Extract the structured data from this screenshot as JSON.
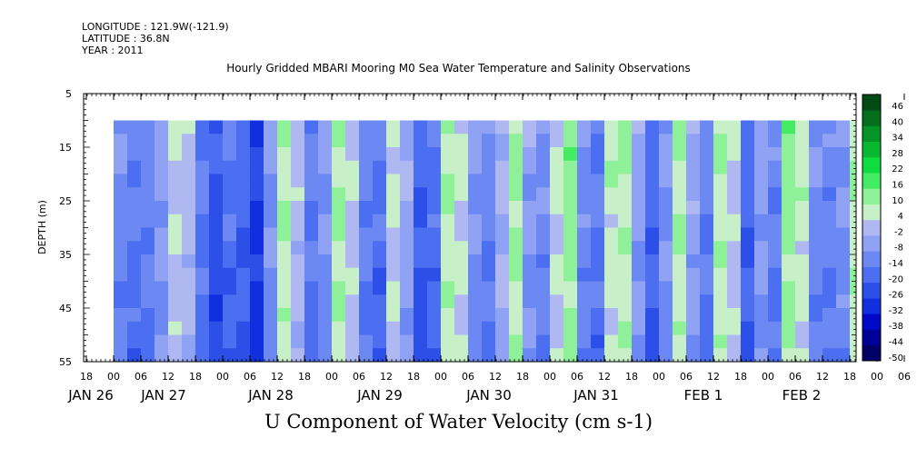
{
  "header": {
    "longitude": "LONGITUDE : 121.9W(-121.9)",
    "latitude": "LATITUDE : 36.8N",
    "year": "YEAR : 2011"
  },
  "chart_data": {
    "type": "heatmap",
    "title": "Hourly Gridded MBARI Mooring M0 Sea Water Temperature and Salinity Observations",
    "xlabel": "U Component of Water Velocity (cm s-1)",
    "ylabel": "DEPTH (m)",
    "x_hour_ticks": [
      "18",
      "00",
      "06",
      "12",
      "18",
      "00",
      "06",
      "12",
      "18",
      "00",
      "06",
      "12",
      "18",
      "00",
      "06",
      "12",
      "18",
      "00",
      "06",
      "12",
      "18",
      "00",
      "06",
      "12",
      "18",
      "00",
      "06",
      "12",
      "18",
      "00",
      "06",
      "12",
      "18"
    ],
    "x_day_labels": [
      "JAN 26",
      "JAN 27",
      "JAN 28",
      "JAN 29",
      "JAN 30",
      "JAN 31",
      "FEB  1",
      "FEB  2"
    ],
    "y_ticks": [
      5,
      15,
      25,
      35,
      45,
      55
    ],
    "ylim": [
      55,
      5
    ],
    "data_depth_range": [
      10,
      55
    ],
    "colorbar": {
      "levels": [
        -50,
        -44,
        -38,
        -32,
        -26,
        -20,
        -14,
        -8,
        -2,
        4,
        10,
        16,
        22,
        28,
        34,
        40,
        46
      ],
      "labels": [
        "46",
        "40",
        "34",
        "28",
        "22",
        "16",
        "10",
        "4",
        "-2",
        "-8",
        "-14",
        "-20",
        "-26",
        "-32",
        "-38",
        "-44",
        "-50"
      ]
    },
    "u_velocity_profile_by_hourly_column": [
      {
        "time": "JAN 27 00",
        "u": -8
      },
      {
        "time": "JAN 27 03",
        "u": -12
      },
      {
        "time": "JAN 27 06",
        "u": -10
      },
      {
        "time": "JAN 27 09",
        "u": -4
      },
      {
        "time": "JAN 27 12",
        "u": 4
      },
      {
        "time": "JAN 27 15",
        "u": 2
      },
      {
        "time": "JAN 27 18",
        "u": -12
      },
      {
        "time": "JAN 27 21",
        "u": -20
      },
      {
        "time": "JAN 28 00",
        "u": -14
      },
      {
        "time": "JAN 28 03",
        "u": -16
      },
      {
        "time": "JAN 28 06",
        "u": -24
      },
      {
        "time": "JAN 28 09",
        "u": -6
      },
      {
        "time": "JAN 28 12",
        "u": 10
      },
      {
        "time": "JAN 28 15",
        "u": 2
      },
      {
        "time": "JAN 28 18",
        "u": -12
      },
      {
        "time": "JAN 28 21",
        "u": -6
      },
      {
        "time": "JAN 29 00",
        "u": 12
      },
      {
        "time": "JAN 29 03",
        "u": 4
      },
      {
        "time": "JAN 29 06",
        "u": -10
      },
      {
        "time": "JAN 29 09",
        "u": -14
      },
      {
        "time": "JAN 29 12",
        "u": 6
      },
      {
        "time": "JAN 29 15",
        "u": -2
      },
      {
        "time": "JAN 29 18",
        "u": -18
      },
      {
        "time": "JAN 29 21",
        "u": -14
      },
      {
        "time": "JAN 30 00",
        "u": 10
      },
      {
        "time": "JAN 30 03",
        "u": 6
      },
      {
        "time": "JAN 30 06",
        "u": -6
      },
      {
        "time": "JAN 30 09",
        "u": -10
      },
      {
        "time": "JAN 30 12",
        "u": 0
      },
      {
        "time": "JAN 30 15",
        "u": 12
      },
      {
        "time": "JAN 30 18",
        "u": -4
      },
      {
        "time": "JAN 30 21",
        "u": -8
      },
      {
        "time": "JAN 31 00",
        "u": 6
      },
      {
        "time": "JAN 31 03",
        "u": 14
      },
      {
        "time": "JAN 31 06",
        "u": -8
      },
      {
        "time": "JAN 31 09",
        "u": -12
      },
      {
        "time": "JAN 31 12",
        "u": 8
      },
      {
        "time": "JAN 31 15",
        "u": 10
      },
      {
        "time": "JAN 31 18",
        "u": -4
      },
      {
        "time": "JAN 31 21",
        "u": -16
      },
      {
        "time": "FEB 1 00",
        "u": -6
      },
      {
        "time": "FEB 1 03",
        "u": 10
      },
      {
        "time": "FEB 1 06",
        "u": -2
      },
      {
        "time": "FEB 1 09",
        "u": -10
      },
      {
        "time": "FEB 1 12",
        "u": 10
      },
      {
        "time": "FEB 1 15",
        "u": 4
      },
      {
        "time": "FEB 1 18",
        "u": -16
      },
      {
        "time": "FEB 1 21",
        "u": -4
      },
      {
        "time": "FEB 2 00",
        "u": -10
      },
      {
        "time": "FEB 2 03",
        "u": 14
      },
      {
        "time": "FEB 2 06",
        "u": 8
      },
      {
        "time": "FEB 2 09",
        "u": -8
      },
      {
        "time": "FEB 2 12",
        "u": -10
      },
      {
        "time": "FEB 2 15",
        "u": -6
      },
      {
        "time": "FEB 2 18",
        "u": 10
      }
    ],
    "color_scale": [
      "#000066",
      "#000099",
      "#0008c8",
      "#1030e0",
      "#2c4fe8",
      "#4c6ef0",
      "#6c88f3",
      "#8fa2f3",
      "#b0b8f2",
      "#c8f0c8",
      "#8ef098",
      "#44ec64",
      "#10dc40",
      "#08b830",
      "#069428",
      "#046e1e",
      "#024a14"
    ],
    "legend": "right"
  }
}
